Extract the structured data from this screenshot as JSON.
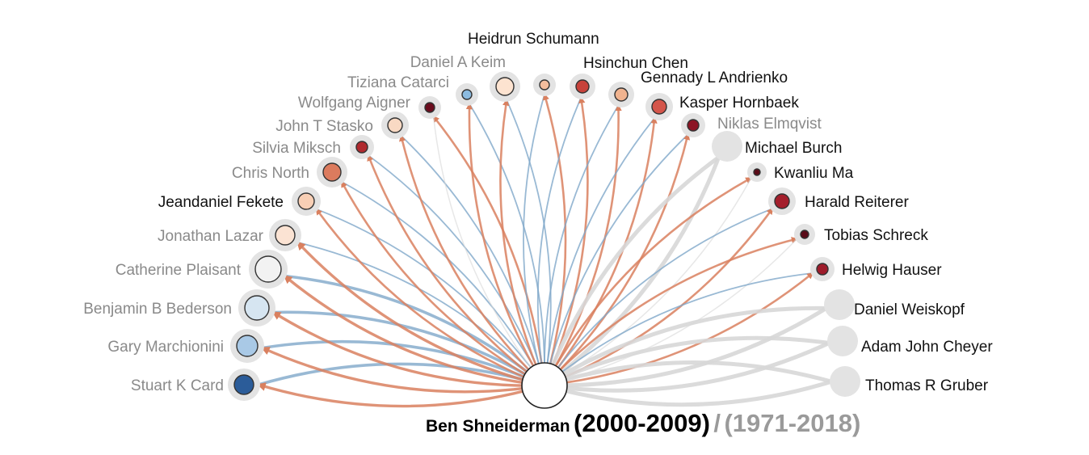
{
  "center": {
    "name": "Ben Shneiderman",
    "period_focus": "(2000-2009)",
    "separator": "/",
    "period_full": "(1971-2018)"
  },
  "colors": {
    "outgoing": "#d9805f",
    "incoming": "#7fa7c9",
    "inactive": "#d7d7d7",
    "halo": "#e3e3e3",
    "node_stroke": "#333333"
  },
  "collaborators": [
    {
      "name": "Stuart K Card",
      "label_style": "gray",
      "fill": "#2b5c99",
      "edges": [
        "in",
        "out"
      ]
    },
    {
      "name": "Gary Marchionini",
      "label_style": "gray",
      "fill": "#a9c9e6",
      "edges": [
        "in",
        "out"
      ]
    },
    {
      "name": "Benjamin B Bederson",
      "label_style": "gray",
      "fill": "#d6e5f1",
      "edges": [
        "in",
        "out"
      ]
    },
    {
      "name": "Catherine Plaisant",
      "label_style": "gray",
      "fill": "#f2f2f2",
      "edges": [
        "in",
        "out"
      ]
    },
    {
      "name": "Jonathan Lazar",
      "label_style": "gray",
      "fill": "#fbe3d3",
      "edges": [
        "in",
        "out"
      ]
    },
    {
      "name": "Jeandaniel Fekete",
      "label_style": "dark",
      "fill": "#f8cfb5",
      "edges": [
        "in",
        "out"
      ]
    },
    {
      "name": "Chris North",
      "label_style": "gray",
      "fill": "#dc7b5e",
      "edges": [
        "in",
        "out"
      ]
    },
    {
      "name": "Silvia Miksch",
      "label_style": "gray",
      "fill": "#b02a2f",
      "edges": [
        "in",
        "out"
      ]
    },
    {
      "name": "John T Stasko",
      "label_style": "gray",
      "fill": "#f9d9c3",
      "edges": [
        "in",
        "out"
      ]
    },
    {
      "name": "Wolfgang Aigner",
      "label_style": "gray",
      "fill": "#6b0d1e",
      "edges": [
        "out",
        "inactive"
      ]
    },
    {
      "name": "Tiziana Catarci",
      "label_style": "gray",
      "fill": "#8cbbe0",
      "edges": [
        "in",
        "out"
      ]
    },
    {
      "name": "Daniel A Keim",
      "label_style": "gray",
      "fill": "#fde3d0",
      "edges": [
        "in",
        "out"
      ]
    },
    {
      "name": "Heidrun Schumann",
      "label_style": "dark",
      "fill": "#f3bd9d",
      "edges": [
        "in",
        "out"
      ]
    },
    {
      "name": "Hsinchun Chen",
      "label_style": "dark",
      "fill": "#c7423b",
      "edges": [
        "in",
        "out"
      ]
    },
    {
      "name": "Gennady L Andrienko",
      "label_style": "dark",
      "fill": "#f0b38f",
      "edges": [
        "in",
        "out"
      ]
    },
    {
      "name": "Kasper Hornbaek",
      "label_style": "dark",
      "fill": "#d4554a",
      "edges": [
        "in",
        "out"
      ]
    },
    {
      "name": "Niklas Elmqvist",
      "label_style": "gray",
      "fill": "#8c1525",
      "edges": [
        "in",
        "out"
      ]
    },
    {
      "name": "Michael Burch",
      "label_style": "dark",
      "fill": "#e3e3e3",
      "edges": [
        "inactive",
        "inactive"
      ]
    },
    {
      "name": "Kwanliu Ma",
      "label_style": "dark",
      "fill": "#5a0b18",
      "edges": [
        "out",
        "inactive"
      ]
    },
    {
      "name": "Harald Reiterer",
      "label_style": "dark",
      "fill": "#a41f2c",
      "edges": [
        "in",
        "out"
      ]
    },
    {
      "name": "Tobias Schreck",
      "label_style": "dark",
      "fill": "#5a0b18",
      "edges": [
        "out",
        "inactive"
      ]
    },
    {
      "name": "Helwig Hauser",
      "label_style": "dark",
      "fill": "#9e1c2b",
      "edges": [
        "in",
        "out"
      ]
    },
    {
      "name": "Daniel Weiskopf",
      "label_style": "dark",
      "fill": "#e3e3e3",
      "edges": [
        "inactive",
        "inactive"
      ]
    },
    {
      "name": "Adam John Cheyer",
      "label_style": "dark",
      "fill": "#e3e3e3",
      "edges": [
        "inactive",
        "inactive"
      ]
    },
    {
      "name": "Thomas R Gruber",
      "label_style": "dark",
      "fill": "#e3e3e3",
      "edges": [
        "inactive",
        "inactive"
      ]
    }
  ]
}
